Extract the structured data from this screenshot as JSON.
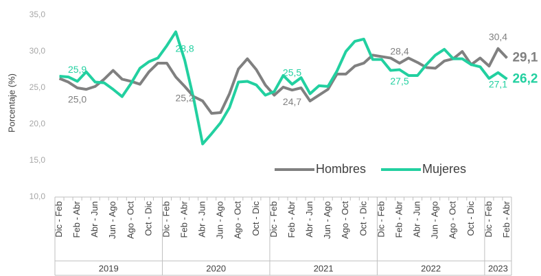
{
  "chart_data": {
    "type": "line",
    "y_label": "Porcentaje (%)",
    "categories": [
      "Dic - Feb",
      null,
      "Feb - Abr",
      null,
      "Abr - Jun",
      null,
      "Jun - Ago",
      null,
      "Ago - Oct",
      null,
      "Oct - Dic",
      null,
      "Dic - Feb",
      null,
      "Feb - Abr",
      null,
      "Abr - Jun",
      null,
      "Jun - Ago",
      null,
      "Ago - Oct",
      null,
      "Oct - Dic",
      null,
      "Dic - Feb",
      null,
      "Feb - Abr",
      null,
      "Abr - Jun",
      null,
      "Jun - Ago",
      null,
      "Ago - Oct",
      null,
      "Oct - Dic",
      null,
      "Dic - Feb",
      null,
      "Feb - Abr",
      null,
      "Abr - Jun",
      null,
      "Jun - Ago",
      null,
      "Ago - Oct",
      null,
      "Oct - Dic",
      null,
      "Dic - Feb",
      null,
      "Feb - Abr"
    ],
    "groups": [
      {
        "name": "2019",
        "count": 12
      },
      {
        "name": "2020",
        "count": 12
      },
      {
        "name": "2021",
        "count": 12
      },
      {
        "name": "2022",
        "count": 12
      },
      {
        "name": "2023",
        "count": 3
      }
    ],
    "series": [
      {
        "name": "Hombres",
        "color": "#808080",
        "values": [
          26.3,
          25.8,
          25.0,
          24.8,
          25.2,
          26.2,
          27.4,
          26.2,
          25.9,
          25.5,
          27.2,
          28.4,
          28.4,
          26.5,
          25.2,
          23.8,
          23.2,
          21.5,
          21.6,
          24.2,
          27.6,
          29.0,
          27.5,
          25.4,
          24.0,
          25.1,
          24.7,
          25.0,
          23.2,
          24.0,
          24.8,
          26.9,
          26.9,
          28.0,
          28.4,
          29.5,
          29.3,
          29.1,
          28.4,
          29.1,
          28.5,
          27.8,
          27.7,
          28.7,
          29.0,
          30.0,
          28.2,
          29.1,
          28.0,
          30.4,
          29.1
        ],
        "value_labels": [
          null,
          null,
          "25,0",
          null,
          null,
          null,
          null,
          null,
          null,
          null,
          null,
          null,
          null,
          null,
          "25,2",
          null,
          null,
          null,
          null,
          null,
          null,
          null,
          null,
          null,
          null,
          null,
          "24,7",
          null,
          null,
          null,
          null,
          null,
          null,
          null,
          null,
          null,
          null,
          null,
          "28,4",
          null,
          null,
          null,
          null,
          null,
          null,
          null,
          null,
          null,
          null,
          "30,4",
          "29,1"
        ]
      },
      {
        "name": "Mujeres",
        "color": "#22d0a0",
        "values": [
          26.6,
          26.5,
          25.9,
          27.2,
          25.8,
          25.7,
          24.8,
          23.8,
          25.6,
          27.7,
          28.6,
          29.1,
          30.8,
          32.7,
          28.8,
          23.5,
          17.3,
          18.7,
          20.2,
          22.3,
          25.8,
          25.9,
          25.4,
          24.0,
          24.5,
          26.7,
          25.5,
          26.4,
          24.2,
          25.3,
          25.2,
          27.3,
          30.0,
          31.4,
          31.7,
          28.9,
          28.9,
          27.4,
          27.5,
          26.7,
          26.7,
          28.2,
          29.5,
          30.3,
          29.0,
          29.0,
          28.2,
          27.9,
          26.3,
          27.1,
          26.2
        ],
        "value_labels": [
          null,
          null,
          "25,9",
          null,
          null,
          null,
          null,
          null,
          null,
          null,
          null,
          null,
          null,
          null,
          "28,8",
          null,
          null,
          null,
          null,
          null,
          null,
          null,
          null,
          null,
          null,
          null,
          "25,5",
          null,
          null,
          null,
          null,
          null,
          null,
          null,
          null,
          null,
          null,
          null,
          "27,5",
          null,
          null,
          null,
          null,
          null,
          null,
          null,
          null,
          null,
          null,
          "27,1",
          "26,2"
        ]
      }
    ],
    "ylim": [
      10,
      35
    ],
    "yticks": [
      {
        "value": 10,
        "label": "10,0"
      },
      {
        "value": 15,
        "label": "15,0"
      },
      {
        "value": 20,
        "label": "20,0"
      },
      {
        "value": 25,
        "label": "25,0"
      },
      {
        "value": 30,
        "label": "30,0"
      },
      {
        "value": 35,
        "label": "35,0"
      }
    ],
    "grid": false,
    "legend": "lower right"
  }
}
